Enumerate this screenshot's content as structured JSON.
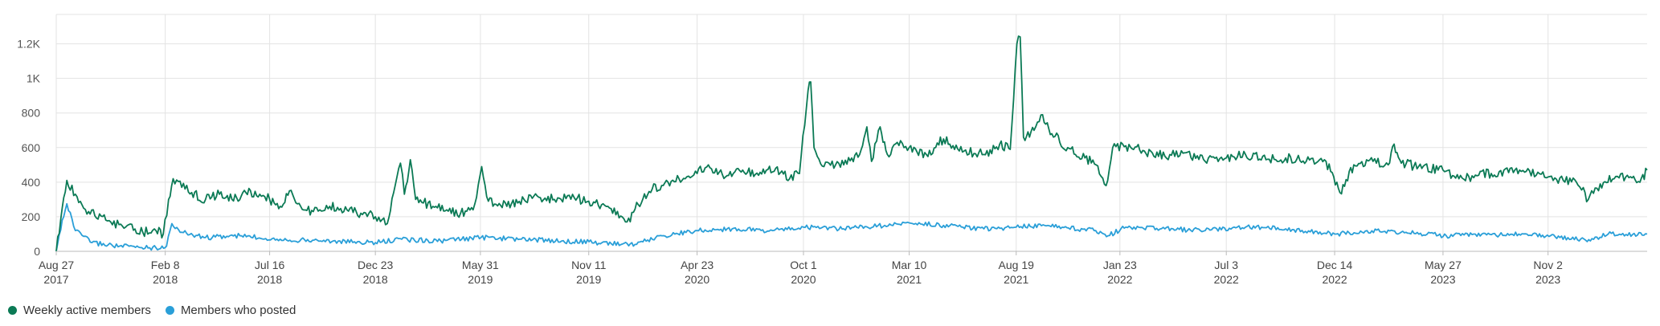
{
  "chart_data": {
    "type": "line",
    "colors": {
      "weekly": "#0b7a55",
      "posted": "#2a9fd8",
      "grid": "#e3e3e3"
    },
    "y_ticks": [
      {
        "value": 0,
        "label": "0"
      },
      {
        "value": 200,
        "label": "200"
      },
      {
        "value": 400,
        "label": "400"
      },
      {
        "value": 600,
        "label": "600"
      },
      {
        "value": 800,
        "label": "800"
      },
      {
        "value": 1000,
        "label": "1K"
      },
      {
        "value": 1200,
        "label": "1.2K"
      }
    ],
    "ylim": [
      0,
      1370
    ],
    "xlim": [
      "2017-08-27",
      "2024-03-31"
    ],
    "x_ticks": [
      {
        "date": "2017-08-27",
        "line1": "Aug 27",
        "line2": "2017"
      },
      {
        "date": "2018-02-08",
        "line1": "Feb 8",
        "line2": "2018"
      },
      {
        "date": "2018-07-16",
        "line1": "Jul 16",
        "line2": "2018"
      },
      {
        "date": "2018-12-23",
        "line1": "Dec 23",
        "line2": "2018"
      },
      {
        "date": "2019-05-31",
        "line1": "May 31",
        "line2": "2019"
      },
      {
        "date": "2019-11-11",
        "line1": "Nov 11",
        "line2": "2019"
      },
      {
        "date": "2020-04-23",
        "line1": "Apr 23",
        "line2": "2020"
      },
      {
        "date": "2020-10-01",
        "line1": "Oct 1",
        "line2": "2020"
      },
      {
        "date": "2021-03-10",
        "line1": "Mar 10",
        "line2": "2021"
      },
      {
        "date": "2021-08-19",
        "line1": "Aug 19",
        "line2": "2021"
      },
      {
        "date": "2022-01-23",
        "line1": "Jan 23",
        "line2": "2022"
      },
      {
        "date": "2022-07-03",
        "line1": "Jul 3",
        "line2": "2022"
      },
      {
        "date": "2022-12-14",
        "line1": "Dec 14",
        "line2": "2022"
      },
      {
        "date": "2023-05-27",
        "line1": "May 27",
        "line2": "2023"
      },
      {
        "date": "2023-11-02",
        "line1": "Nov 2",
        "line2": "2023"
      }
    ],
    "series": [
      {
        "name": "Weekly active members",
        "points": [
          [
            "2017-08-27",
            0
          ],
          [
            "2017-09-05",
            250
          ],
          [
            "2017-09-12",
            410
          ],
          [
            "2017-09-25",
            330
          ],
          [
            "2017-10-15",
            230
          ],
          [
            "2017-11-10",
            180
          ],
          [
            "2017-12-10",
            140
          ],
          [
            "2018-01-05",
            110
          ],
          [
            "2018-01-25",
            120
          ],
          [
            "2018-02-05",
            100
          ],
          [
            "2018-02-13",
            300
          ],
          [
            "2018-02-20",
            420
          ],
          [
            "2018-03-05",
            370
          ],
          [
            "2018-03-20",
            340
          ],
          [
            "2018-04-10",
            300
          ],
          [
            "2018-05-01",
            330
          ],
          [
            "2018-05-20",
            300
          ],
          [
            "2018-06-10",
            340
          ],
          [
            "2018-07-01",
            330
          ],
          [
            "2018-07-16",
            300
          ],
          [
            "2018-08-01",
            260
          ],
          [
            "2018-08-15",
            350
          ],
          [
            "2018-09-01",
            260
          ],
          [
            "2018-09-20",
            230
          ],
          [
            "2018-10-15",
            260
          ],
          [
            "2018-11-10",
            240
          ],
          [
            "2018-12-01",
            220
          ],
          [
            "2018-12-23",
            200
          ],
          [
            "2019-01-10",
            160
          ],
          [
            "2019-01-22",
            380
          ],
          [
            "2019-01-30",
            510
          ],
          [
            "2019-02-05",
            330
          ],
          [
            "2019-02-14",
            530
          ],
          [
            "2019-02-22",
            300
          ],
          [
            "2019-03-20",
            260
          ],
          [
            "2019-04-10",
            240
          ],
          [
            "2019-05-01",
            220
          ],
          [
            "2019-05-20",
            240
          ],
          [
            "2019-06-02",
            490
          ],
          [
            "2019-06-12",
            290
          ],
          [
            "2019-07-10",
            260
          ],
          [
            "2019-08-05",
            300
          ],
          [
            "2019-08-25",
            320
          ],
          [
            "2019-09-20",
            300
          ],
          [
            "2019-10-20",
            310
          ],
          [
            "2019-11-11",
            290
          ],
          [
            "2019-12-10",
            260
          ],
          [
            "2020-01-08",
            170
          ],
          [
            "2020-01-25",
            270
          ],
          [
            "2020-02-15",
            360
          ],
          [
            "2020-03-10",
            400
          ],
          [
            "2020-04-05",
            420
          ],
          [
            "2020-04-23",
            450
          ],
          [
            "2020-05-10",
            500
          ],
          [
            "2020-06-05",
            430
          ],
          [
            "2020-07-01",
            470
          ],
          [
            "2020-07-25",
            440
          ],
          [
            "2020-08-20",
            480
          ],
          [
            "2020-09-10",
            420
          ],
          [
            "2020-09-25",
            450
          ],
          [
            "2020-10-08",
            930
          ],
          [
            "2020-10-12",
            980
          ],
          [
            "2020-10-17",
            600
          ],
          [
            "2020-11-01",
            490
          ],
          [
            "2020-12-01",
            500
          ],
          [
            "2020-12-25",
            560
          ],
          [
            "2021-01-05",
            720
          ],
          [
            "2021-01-12",
            520
          ],
          [
            "2021-01-25",
            720
          ],
          [
            "2021-02-05",
            560
          ],
          [
            "2021-02-25",
            640
          ],
          [
            "2021-03-10",
            600
          ],
          [
            "2021-04-05",
            560
          ],
          [
            "2021-05-01",
            650
          ],
          [
            "2021-06-01",
            580
          ],
          [
            "2021-07-01",
            560
          ],
          [
            "2021-07-25",
            620
          ],
          [
            "2021-08-10",
            590
          ],
          [
            "2021-08-20",
            1200
          ],
          [
            "2021-08-25",
            1240
          ],
          [
            "2021-08-30",
            660
          ],
          [
            "2021-09-15",
            700
          ],
          [
            "2021-09-28",
            790
          ],
          [
            "2021-10-12",
            680
          ],
          [
            "2021-11-05",
            600
          ],
          [
            "2021-12-01",
            540
          ],
          [
            "2021-12-18",
            500
          ],
          [
            "2022-01-02",
            380
          ],
          [
            "2022-01-12",
            600
          ],
          [
            "2022-02-01",
            610
          ],
          [
            "2022-03-01",
            580
          ],
          [
            "2022-04-01",
            550
          ],
          [
            "2022-05-01",
            570
          ],
          [
            "2022-06-01",
            520
          ],
          [
            "2022-07-03",
            540
          ],
          [
            "2022-08-01",
            560
          ],
          [
            "2022-09-01",
            530
          ],
          [
            "2022-10-01",
            540
          ],
          [
            "2022-11-01",
            520
          ],
          [
            "2022-12-01",
            520
          ],
          [
            "2022-12-22",
            340
          ],
          [
            "2023-01-12",
            500
          ],
          [
            "2023-02-10",
            520
          ],
          [
            "2023-03-05",
            500
          ],
          [
            "2023-03-14",
            620
          ],
          [
            "2023-03-25",
            510
          ],
          [
            "2023-04-20",
            490
          ],
          [
            "2023-05-27",
            470
          ],
          [
            "2023-06-20",
            420
          ],
          [
            "2023-07-20",
            440
          ],
          [
            "2023-08-20",
            460
          ],
          [
            "2023-09-20",
            470
          ],
          [
            "2023-10-15",
            440
          ],
          [
            "2023-11-02",
            430
          ],
          [
            "2023-11-25",
            410
          ],
          [
            "2023-12-15",
            400
          ],
          [
            "2024-01-02",
            300
          ],
          [
            "2024-01-20",
            390
          ],
          [
            "2024-02-10",
            420
          ],
          [
            "2024-03-01",
            440
          ],
          [
            "2024-03-20",
            400
          ],
          [
            "2024-03-31",
            470
          ]
        ]
      },
      {
        "name": "Members who posted",
        "points": [
          [
            "2017-08-27",
            0
          ],
          [
            "2017-09-05",
            180
          ],
          [
            "2017-09-12",
            275
          ],
          [
            "2017-09-25",
            120
          ],
          [
            "2017-10-20",
            50
          ],
          [
            "2017-12-01",
            30
          ],
          [
            "2018-01-25",
            20
          ],
          [
            "2018-02-10",
            30
          ],
          [
            "2018-02-18",
            160
          ],
          [
            "2018-03-05",
            110
          ],
          [
            "2018-04-10",
            80
          ],
          [
            "2018-06-01",
            90
          ],
          [
            "2018-08-01",
            70
          ],
          [
            "2018-10-01",
            60
          ],
          [
            "2018-12-23",
            50
          ],
          [
            "2019-02-01",
            70
          ],
          [
            "2019-04-01",
            60
          ],
          [
            "2019-06-01",
            80
          ],
          [
            "2019-08-01",
            70
          ],
          [
            "2019-10-01",
            60
          ],
          [
            "2019-12-01",
            50
          ],
          [
            "2020-01-20",
            40
          ],
          [
            "2020-03-01",
            90
          ],
          [
            "2020-04-23",
            120
          ],
          [
            "2020-06-15",
            130
          ],
          [
            "2020-08-15",
            120
          ],
          [
            "2020-10-01",
            140
          ],
          [
            "2020-12-01",
            130
          ],
          [
            "2021-02-01",
            150
          ],
          [
            "2021-03-10",
            165
          ],
          [
            "2021-05-01",
            150
          ],
          [
            "2021-07-01",
            130
          ],
          [
            "2021-08-19",
            140
          ],
          [
            "2021-10-01",
            150
          ],
          [
            "2021-12-15",
            120
          ],
          [
            "2022-01-05",
            90
          ],
          [
            "2022-02-01",
            140
          ],
          [
            "2022-04-01",
            130
          ],
          [
            "2022-06-01",
            120
          ],
          [
            "2022-08-01",
            140
          ],
          [
            "2022-10-01",
            130
          ],
          [
            "2022-12-14",
            100
          ],
          [
            "2023-02-01",
            120
          ],
          [
            "2023-04-01",
            110
          ],
          [
            "2023-06-01",
            90
          ],
          [
            "2023-08-01",
            95
          ],
          [
            "2023-10-01",
            100
          ],
          [
            "2023-11-20",
            80
          ],
          [
            "2024-01-05",
            60
          ],
          [
            "2024-02-01",
            100
          ],
          [
            "2024-03-31",
            100
          ]
        ]
      }
    ],
    "legend_position": "bottom-left"
  },
  "legend": {
    "weekly_label": "Weekly active members",
    "posted_label": "Members who posted"
  }
}
